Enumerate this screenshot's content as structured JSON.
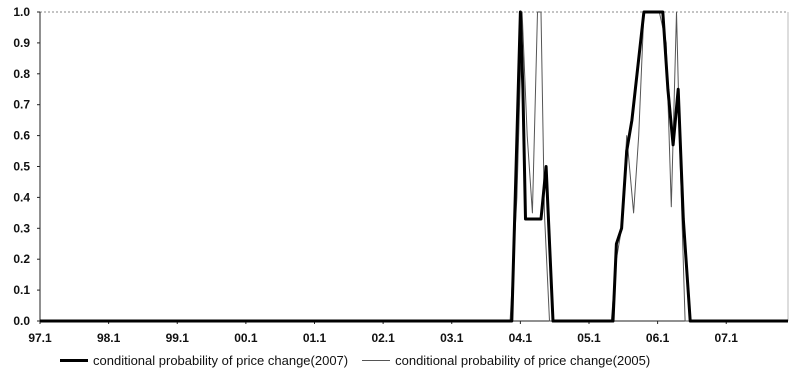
{
  "chart_data": {
    "type": "line",
    "x": [
      "97.1",
      "97.2",
      "97.3",
      "97.4",
      "98.1",
      "98.2",
      "98.3",
      "98.4",
      "99.1",
      "99.2",
      "99.3",
      "99.4",
      "00.1",
      "00.2",
      "00.3",
      "00.4",
      "01.1",
      "01.2",
      "01.3",
      "01.4",
      "02.1",
      "02.2",
      "02.3",
      "02.4",
      "03.1",
      "03.2",
      "03.3",
      "03.4",
      "04.1",
      "04.2",
      "04.3",
      "04.4",
      "05.1",
      "05.2",
      "05.3",
      "05.4",
      "06.1",
      "06.2",
      "06.3",
      "06.4",
      "07.1",
      "07.2",
      "07.3",
      "07.4"
    ],
    "xticks": [
      "97.1",
      "98.1",
      "99.1",
      "00.1",
      "01.1",
      "02.1",
      "03.1",
      "04.1",
      "05.1",
      "06.1",
      "07.1"
    ],
    "ylim": [
      0,
      1.0
    ],
    "yticks": [
      "0.0",
      "0.1",
      "0.2",
      "0.3",
      "0.4",
      "0.5",
      "0.6",
      "0.7",
      "0.8",
      "0.9",
      "1.0"
    ],
    "grid": false,
    "legend_placement": "bottom",
    "series": [
      {
        "name": "conditional probability of price change(2007)",
        "color": "#000000",
        "points": [
          [
            0,
            0
          ],
          [
            27.5,
            0
          ],
          [
            28,
            1.0
          ],
          [
            28.15,
            0.75
          ],
          [
            28.3,
            0.33
          ],
          [
            29.2,
            0.33
          ],
          [
            29.5,
            0.5
          ],
          [
            29.9,
            0
          ],
          [
            33.4,
            0
          ],
          [
            33.6,
            0.25
          ],
          [
            33.9,
            0.3
          ],
          [
            34.2,
            0.55
          ],
          [
            34.5,
            0.65
          ],
          [
            35.2,
            1.0
          ],
          [
            36.3,
            1.0
          ],
          [
            36.6,
            0.75
          ],
          [
            36.9,
            0.57
          ],
          [
            37.2,
            0.75
          ],
          [
            37.5,
            0.33
          ],
          [
            37.9,
            0
          ],
          [
            43.6,
            0
          ]
        ]
      },
      {
        "name": "conditional probability of price change(2005)",
        "color": "#555555",
        "points": [
          [
            0,
            0
          ],
          [
            27.4,
            0
          ],
          [
            27.8,
            0.4
          ],
          [
            28.1,
            1.0
          ],
          [
            28.4,
            0.6
          ],
          [
            28.7,
            0.35
          ],
          [
            29.0,
            1.0
          ],
          [
            29.2,
            1.0
          ],
          [
            29.4,
            0.35
          ],
          [
            29.7,
            0
          ],
          [
            33.3,
            0
          ],
          [
            33.6,
            0.2
          ],
          [
            33.9,
            0.3
          ],
          [
            34.2,
            0.6
          ],
          [
            34.6,
            0.35
          ],
          [
            34.9,
            0.6
          ],
          [
            35.2,
            1.0
          ],
          [
            36.1,
            1.0
          ],
          [
            36.5,
            0.9
          ],
          [
            36.8,
            0.37
          ],
          [
            37.1,
            1.0
          ],
          [
            37.3,
            0.55
          ],
          [
            37.6,
            0
          ],
          [
            43.6,
            0
          ]
        ]
      }
    ]
  }
}
